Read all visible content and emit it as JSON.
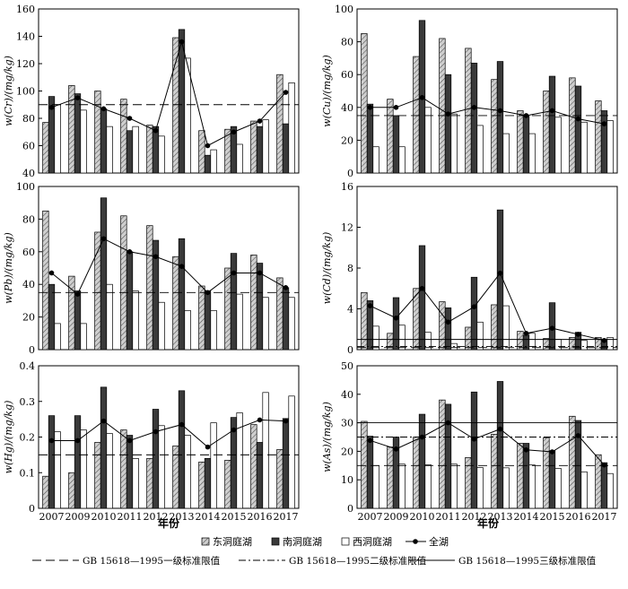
{
  "figure": {
    "xlabel": "年份",
    "years": [
      "2007",
      "2009",
      "2010",
      "2011",
      "2012",
      "2013",
      "2014",
      "2015",
      "2016",
      "2017"
    ]
  },
  "legend": {
    "east": "东洞庭湖",
    "south": "南洞庭湖",
    "west": "西洞庭湖",
    "whole": "全湖",
    "level1": "GB 15618—1995一级标准限值",
    "level2": "GB 15618—1995二级标准限值",
    "level3": "GB 15618—1995三级标准限值"
  },
  "colors": {
    "south_fill": "#3a3a3a",
    "east_fill": "#cfcfcf",
    "west_fill": "#ffffff",
    "line": "#000000"
  },
  "chart_data": [
    {
      "id": "cr",
      "type": "bar",
      "ylabel": "w(Cr)/(mg/kg)",
      "ylim": [
        40,
        160
      ],
      "yticks": [
        40,
        60,
        80,
        100,
        120,
        140,
        160
      ],
      "categories": [
        "2007",
        "2009",
        "2010",
        "2011",
        "2012",
        "2013",
        "2014",
        "2015",
        "2016",
        "2017"
      ],
      "series": [
        {
          "name": "东洞庭湖",
          "values": [
            77,
            104,
            100,
            94,
            75,
            139,
            71,
            72,
            78,
            112
          ]
        },
        {
          "name": "南洞庭湖",
          "values": [
            96,
            98,
            87,
            71,
            74,
            145,
            53,
            74,
            74,
            76
          ]
        },
        {
          "name": "西洞庭湖",
          "values": [
            90,
            86,
            74,
            74,
            67,
            124,
            57,
            61,
            79,
            106
          ]
        },
        {
          "name": "全湖",
          "values": [
            88,
            95,
            87,
            80,
            71,
            136,
            60,
            70,
            78,
            99
          ]
        }
      ],
      "standards": [
        {
          "type": "level1",
          "value": 90
        }
      ]
    },
    {
      "id": "cu",
      "type": "bar",
      "ylabel": "w(Cu)/(mg/kg)",
      "ylim": [
        0,
        100
      ],
      "yticks": [
        0,
        20,
        40,
        60,
        80,
        100
      ],
      "categories": [
        "2007",
        "2009",
        "2010",
        "2011",
        "2012",
        "2013",
        "2014",
        "2015",
        "2016",
        "2017"
      ],
      "series": [
        {
          "name": "东洞庭湖",
          "values": [
            85,
            45,
            71,
            82,
            76,
            57,
            38,
            50,
            58,
            44
          ]
        },
        {
          "name": "南洞庭湖",
          "values": [
            42,
            35,
            93,
            60,
            67,
            68,
            35,
            59,
            53,
            38
          ]
        },
        {
          "name": "西洞庭湖",
          "values": [
            16,
            16,
            40,
            36,
            29,
            24,
            24,
            34,
            31,
            32
          ]
        },
        {
          "name": "全湖",
          "values": [
            40,
            40,
            46,
            36,
            40,
            38,
            35,
            38,
            33,
            30
          ]
        }
      ],
      "standards": [
        {
          "type": "level1",
          "value": 35
        }
      ]
    },
    {
      "id": "pb",
      "type": "bar",
      "ylabel": "w(Pb)/(mg/kg)",
      "ylim": [
        0,
        100
      ],
      "yticks": [
        0,
        20,
        40,
        60,
        80,
        100
      ],
      "categories": [
        "2007",
        "2009",
        "2010",
        "2011",
        "2012",
        "2013",
        "2014",
        "2015",
        "2016",
        "2017"
      ],
      "series": [
        {
          "name": "东洞庭湖",
          "values": [
            85,
            45,
            72,
            82,
            76,
            57,
            39,
            50,
            58,
            44
          ]
        },
        {
          "name": "南洞庭湖",
          "values": [
            40,
            36,
            93,
            60,
            67,
            68,
            36,
            59,
            53,
            38
          ]
        },
        {
          "name": "西洞庭湖",
          "values": [
            16,
            16,
            40,
            36,
            29,
            24,
            24,
            34,
            32,
            32
          ]
        },
        {
          "name": "全湖",
          "values": [
            47,
            34,
            68,
            60,
            57,
            51,
            35,
            47,
            47,
            38
          ]
        }
      ],
      "standards": [
        {
          "type": "level1",
          "value": 35
        }
      ]
    },
    {
      "id": "cd",
      "type": "bar",
      "ylabel": "w(Cd)/(mg/kg)",
      "ylim": [
        0,
        16
      ],
      "yticks": [
        0,
        4,
        8,
        12,
        16
      ],
      "categories": [
        "2007",
        "2009",
        "2010",
        "2011",
        "2012",
        "2013",
        "2014",
        "2015",
        "2016",
        "2017"
      ],
      "series": [
        {
          "name": "东洞庭湖",
          "values": [
            5.6,
            1.6,
            6.0,
            4.7,
            2.2,
            4.4,
            1.8,
            1.1,
            1.2,
            1.2
          ]
        },
        {
          "name": "南洞庭湖",
          "values": [
            4.8,
            5.1,
            10.2,
            4.1,
            7.1,
            13.7,
            1.4,
            4.6,
            1.7,
            1.0
          ]
        },
        {
          "name": "西洞庭湖",
          "values": [
            2.3,
            2.4,
            1.7,
            0.6,
            2.7,
            4.3,
            1.6,
            1.0,
            0.9,
            1.2
          ]
        },
        {
          "name": "全湖",
          "values": [
            4.3,
            3.1,
            6.0,
            2.7,
            4.2,
            7.5,
            1.6,
            2.1,
            1.5,
            0.9
          ]
        }
      ],
      "standards": [
        {
          "type": "level1",
          "value": 0.2
        },
        {
          "type": "level2",
          "value": 0.3
        },
        {
          "type": "level3",
          "value": 1.0
        }
      ]
    },
    {
      "id": "hg",
      "type": "bar",
      "ylabel": "w(Hg)/(mg/kg)",
      "ylim": [
        0,
        0.4
      ],
      "yticks": [
        0,
        0.1,
        0.2,
        0.3,
        0.4
      ],
      "categories": [
        "2007",
        "2009",
        "2010",
        "2011",
        "2012",
        "2013",
        "2014",
        "2015",
        "2016",
        "2017"
      ],
      "series": [
        {
          "name": "东洞庭湖",
          "values": [
            0.09,
            0.1,
            0.185,
            0.22,
            0.14,
            0.175,
            0.13,
            0.135,
            0.235,
            0.165
          ]
        },
        {
          "name": "南洞庭湖",
          "values": [
            0.26,
            0.26,
            0.34,
            0.205,
            0.278,
            0.33,
            0.14,
            0.255,
            0.185,
            0.252
          ]
        },
        {
          "name": "西洞庭湖",
          "values": [
            0.215,
            0.22,
            0.21,
            0.14,
            0.232,
            0.205,
            0.24,
            0.268,
            0.325,
            0.315
          ]
        },
        {
          "name": "全湖",
          "values": [
            0.19,
            0.19,
            0.245,
            0.19,
            0.215,
            0.235,
            0.172,
            0.22,
            0.248,
            0.245
          ]
        }
      ],
      "standards": [
        {
          "type": "level1",
          "value": 0.15
        }
      ]
    },
    {
      "id": "as",
      "type": "bar",
      "ylabel": "w(As)/(mg/kg)",
      "ylim": [
        0,
        50
      ],
      "yticks": [
        0,
        10,
        20,
        30,
        40,
        50
      ],
      "categories": [
        "2007",
        "2009",
        "2010",
        "2011",
        "2012",
        "2013",
        "2014",
        "2015",
        "2016",
        "2017"
      ],
      "series": [
        {
          "name": "东洞庭湖",
          "values": [
            30.5,
            21.5,
            25.0,
            38.0,
            17.8,
            26.0,
            22.8,
            24.8,
            32.3,
            18.8
          ]
        },
        {
          "name": "南洞庭湖",
          "values": [
            25.3,
            25.0,
            33.0,
            36.5,
            40.8,
            44.5,
            22.8,
            20.2,
            30.8,
            16.0
          ]
        },
        {
          "name": "西洞庭湖",
          "values": [
            15.0,
            15.5,
            15.3,
            15.5,
            14.3,
            14.2,
            15.2,
            14.0,
            12.8,
            12.2
          ]
        },
        {
          "name": "全湖",
          "values": [
            23.8,
            20.8,
            25.0,
            30.0,
            24.3,
            27.8,
            20.5,
            19.8,
            25.5,
            15.2
          ]
        }
      ],
      "standards": [
        {
          "type": "level1",
          "value": 15
        },
        {
          "type": "level2",
          "value": 25
        },
        {
          "type": "level3",
          "value": 30
        }
      ]
    }
  ]
}
